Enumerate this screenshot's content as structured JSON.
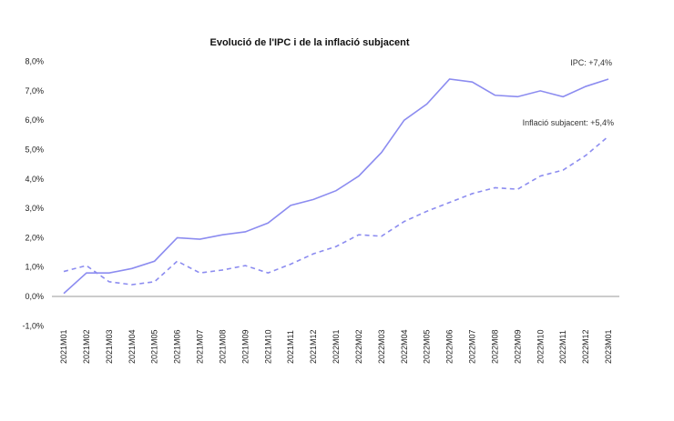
{
  "chart_data": {
    "type": "line",
    "title": "Evolució de l'IPC i de la inflació subjacent",
    "xlabel": "",
    "ylabel": "",
    "ylim": [
      -1,
      8
    ],
    "y_ticks": [
      "-1,0%",
      "0,0%",
      "1,0%",
      "2,0%",
      "3,0%",
      "4,0%",
      "5,0%",
      "6,0%",
      "7,0%",
      "8,0%"
    ],
    "grid": false,
    "categories": [
      "2021M01",
      "2021M02",
      "2021M03",
      "2021M04",
      "2021M05",
      "2021M06",
      "2021M07",
      "2021M08",
      "2021M09",
      "2021M10",
      "2021M11",
      "2021M12",
      "2022M01",
      "2022M02",
      "2022M03",
      "2022M04",
      "2022M05",
      "2022M06",
      "2022M07",
      "2022M08",
      "2022M09",
      "2022M10",
      "2022M11",
      "2022M12",
      "2023M01"
    ],
    "series": [
      {
        "name": "IPC",
        "style": "solid",
        "color": "#8c8cf0",
        "values": [
          0.1,
          0.8,
          0.8,
          0.95,
          1.2,
          2.0,
          1.95,
          2.1,
          2.2,
          2.5,
          3.1,
          3.3,
          3.6,
          4.1,
          4.9,
          6.0,
          6.55,
          7.4,
          7.3,
          6.85,
          6.8,
          7.0,
          6.8,
          7.15,
          7.4
        ]
      },
      {
        "name": "Inflació subjacent",
        "style": "dashed",
        "color": "#8c8cf0",
        "values": [
          0.85,
          1.05,
          0.5,
          0.4,
          0.5,
          1.2,
          0.8,
          0.9,
          1.05,
          0.8,
          1.1,
          1.45,
          1.7,
          2.1,
          2.05,
          2.55,
          2.9,
          3.2,
          3.5,
          3.7,
          3.65,
          4.1,
          4.3,
          4.8,
          5.45
        ]
      }
    ],
    "annotations": [
      "IPC: +7,4%",
      "Inflació subjacent: +5,4%"
    ]
  }
}
